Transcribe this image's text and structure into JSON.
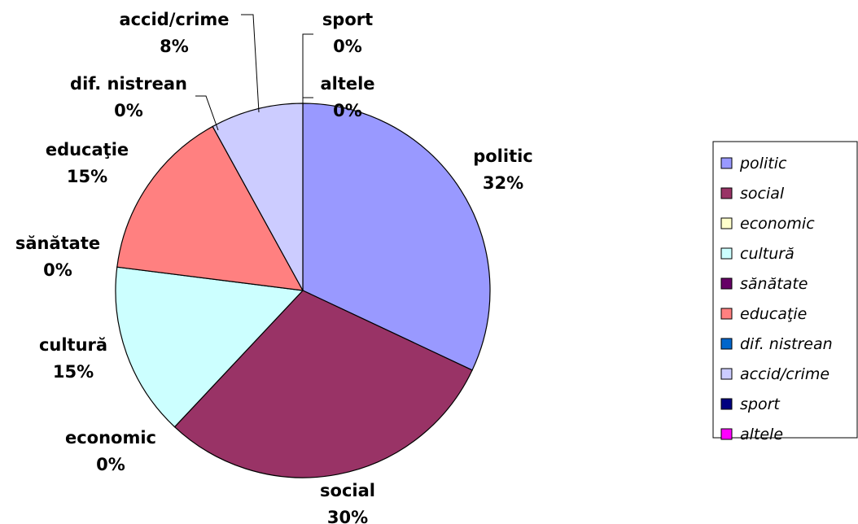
{
  "chart_data": {
    "type": "pie",
    "title": "",
    "legend_position": "right",
    "slices": [
      {
        "name": "politic",
        "label": "politic",
        "value": 32,
        "pct_label": "32%",
        "color": "#9999ff"
      },
      {
        "name": "social",
        "label": "social",
        "value": 30,
        "pct_label": "30%",
        "color": "#993366"
      },
      {
        "name": "economic",
        "label": "economic",
        "value": 0,
        "pct_label": "0%",
        "color": "#ffffcc"
      },
      {
        "name": "cultură",
        "label": "cultură",
        "value": 15,
        "pct_label": "15%",
        "color": "#ccffff"
      },
      {
        "name": "sănătate",
        "label": "sănătate",
        "value": 0,
        "pct_label": "0%",
        "color": "#660066"
      },
      {
        "name": "educaţie",
        "label": "educaţie",
        "value": 15,
        "pct_label": "15%",
        "color": "#ff8080"
      },
      {
        "name": "dif. nistrean",
        "label": "dif. nistrean",
        "value": 0,
        "pct_label": "0%",
        "color": "#0066cc"
      },
      {
        "name": "accid/crime",
        "label": "accid/crime",
        "value": 8,
        "pct_label": "8%",
        "color": "#ccccff"
      },
      {
        "name": "sport",
        "label": "sport",
        "value": 0,
        "pct_label": "0%",
        "color": "#000080"
      },
      {
        "name": "altele",
        "label": "altele",
        "value": 0,
        "pct_label": "0%",
        "color": "#ff00ff"
      }
    ]
  }
}
